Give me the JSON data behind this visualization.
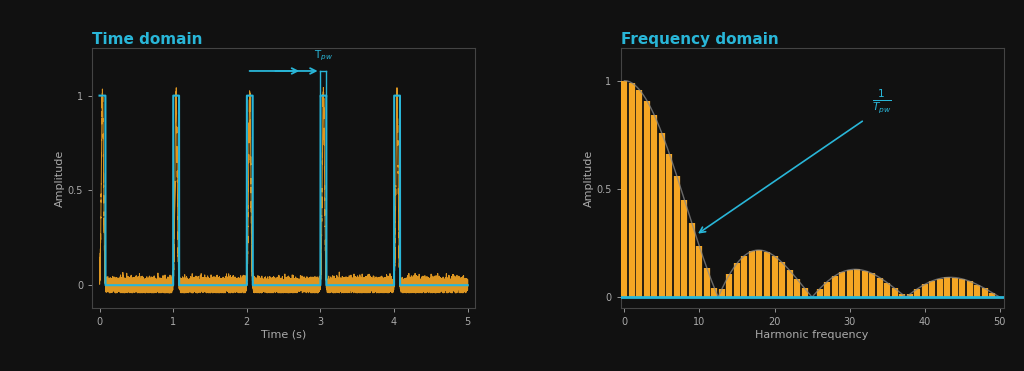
{
  "bg_color": "#111111",
  "plot_bg": "#111111",
  "cyan_color": "#29b6d8",
  "orange_color": "#f5a623",
  "gray_color": "#888888",
  "title_left": "Time domain",
  "title_right": "Frequency domain",
  "xlabel_left": "Time (s)",
  "xlabel_right": "Harmonic frequency",
  "ylabel_left": "Amplitude",
  "ylabel_right": "Amplitude",
  "title_fontsize": 11,
  "label_fontsize": 8,
  "tick_fontsize": 7,
  "duty_cycle": 0.08,
  "period": 1.0,
  "n_periods": 5,
  "n_harmonics": 50,
  "spine_color": "#444444",
  "tick_color": "#aaaaaa"
}
